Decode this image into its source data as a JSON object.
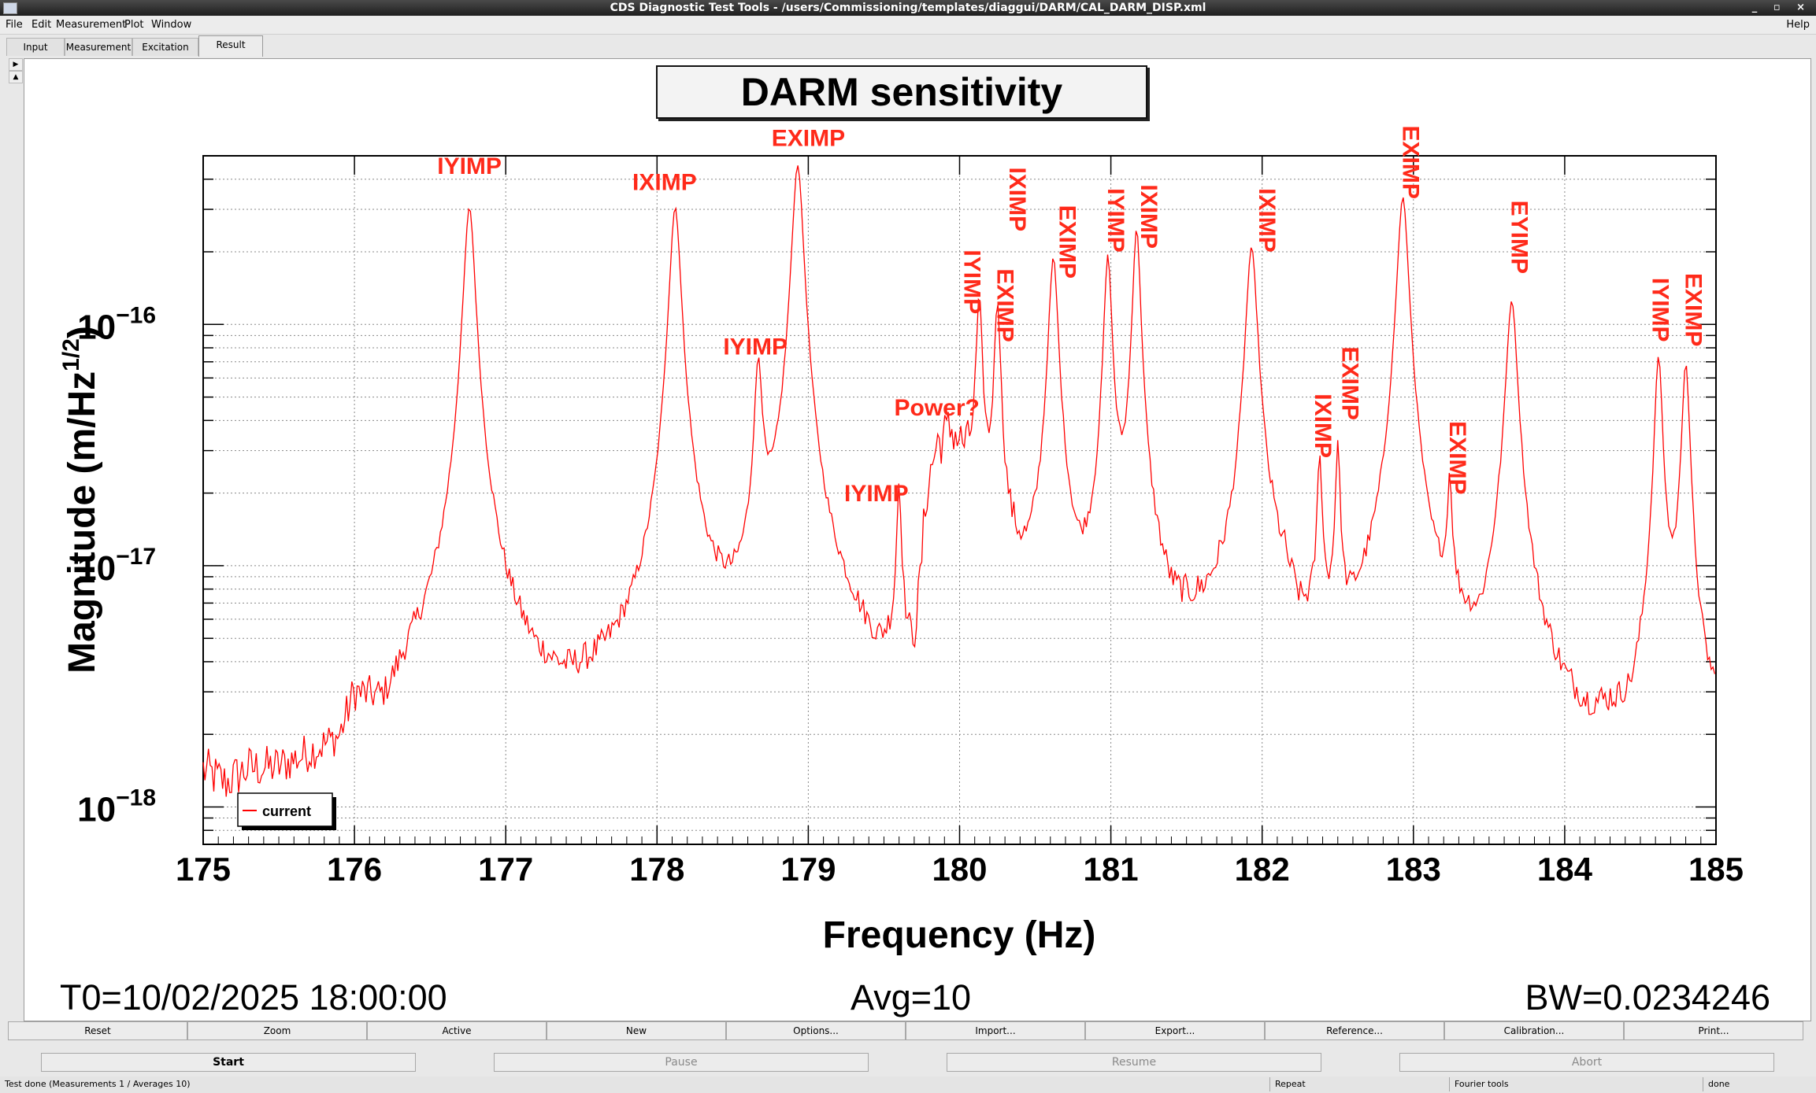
{
  "window": {
    "title": "CDS Diagnostic Test Tools - /users/Commissioning/templates/diaggui/DARM/CAL_DARM_DISP.xml",
    "controls": "_ ▫ ×"
  },
  "menu": {
    "items": [
      "File",
      "Edit",
      "Measurement",
      "Plot",
      "Window"
    ],
    "help": "Help"
  },
  "tabs": [
    "Input",
    "Measurement",
    "Excitation",
    "Result"
  ],
  "active_tab": "Result",
  "chart_data": {
    "type": "line",
    "title": "DARM sensitivity",
    "xlabel": "Frequency (Hz)",
    "ylabel_main": "Magnitude (m/Hz",
    "ylabel_sup": "1/2",
    "ylabel_close": ")",
    "xlim": [
      175,
      185
    ],
    "ylim": [
      7e-19,
      5e-16
    ],
    "yscale": "log",
    "grid": true,
    "x_ticks": [
      "175",
      "176",
      "177",
      "178",
      "179",
      "180",
      "181",
      "182",
      "183",
      "184",
      "185"
    ],
    "y_ticks": [
      {
        "value": 1e-18,
        "base": "10",
        "exp": "−18"
      },
      {
        "value": 1e-17,
        "base": "10",
        "exp": "−17"
      },
      {
        "value": 1e-16,
        "base": "10",
        "exp": "−16"
      }
    ],
    "series": [
      {
        "name": "current",
        "color": "#ff0000"
      }
    ],
    "baseline_points": [
      [
        175.0,
        1.2e-18
      ],
      [
        175.15,
        1e-18
      ],
      [
        175.3,
        1.15e-18
      ],
      [
        175.5,
        1.1e-18
      ],
      [
        175.7,
        1.2e-18
      ],
      [
        175.9,
        1.3e-18
      ],
      [
        176.0,
        2.2e-18
      ],
      [
        176.2,
        1.6e-18
      ],
      [
        176.35,
        2.5e-18
      ],
      [
        176.5,
        3.2e-18
      ],
      [
        176.6,
        4e-18
      ],
      [
        176.75,
        5.2e-18
      ],
      [
        176.9,
        5e-18
      ],
      [
        177.0,
        3.4e-18
      ],
      [
        177.2,
        2.3e-18
      ],
      [
        177.4,
        2e-18
      ],
      [
        177.6,
        2.2e-18
      ],
      [
        177.8,
        2.6e-18
      ],
      [
        178.0,
        3.4e-18
      ],
      [
        178.2,
        5.8e-18
      ],
      [
        178.35,
        3.9e-18
      ],
      [
        178.5,
        3.4e-18
      ],
      [
        178.7,
        5.2e-18
      ],
      [
        178.9,
        6.5e-18
      ],
      [
        179.1,
        4.2e-18
      ],
      [
        179.3,
        3.2e-18
      ],
      [
        179.45,
        2.3e-18
      ],
      [
        179.6,
        3.2e-18
      ],
      [
        179.7,
        2.7e-18
      ],
      [
        179.78,
        1.8e-17
      ],
      [
        179.85,
        3e-17
      ],
      [
        179.95,
        3.4e-17
      ],
      [
        180.05,
        2.4e-17
      ],
      [
        180.15,
        1.4e-17
      ],
      [
        180.3,
        1e-17
      ],
      [
        180.45,
        6e-18
      ],
      [
        180.55,
        7e-18
      ],
      [
        180.7,
        6.5e-18
      ],
      [
        180.8,
        4.2e-18
      ],
      [
        180.9,
        5.5e-18
      ],
      [
        181.0,
        8e-18
      ],
      [
        181.1,
        6.5e-18
      ],
      [
        181.25,
        6.5e-18
      ],
      [
        181.4,
        4e-18
      ],
      [
        181.6,
        4.3e-18
      ],
      [
        181.8,
        5.3e-18
      ],
      [
        182.0,
        8e-18
      ],
      [
        182.15,
        6e-18
      ],
      [
        182.25,
        3.5e-18
      ],
      [
        182.4,
        3.8e-18
      ],
      [
        182.55,
        3.2e-18
      ],
      [
        182.7,
        4e-18
      ],
      [
        182.85,
        5.5e-18
      ],
      [
        183.0,
        6e-18
      ],
      [
        183.1,
        3.6e-18
      ],
      [
        183.3,
        3.3e-18
      ],
      [
        183.45,
        2.2e-18
      ],
      [
        183.55,
        4e-18
      ],
      [
        183.7,
        5e-18
      ],
      [
        183.85,
        2.6e-18
      ],
      [
        184.0,
        1.8e-18
      ],
      [
        184.15,
        1.5e-18
      ],
      [
        184.3,
        1.6e-18
      ],
      [
        184.45,
        1.3e-18
      ],
      [
        184.55,
        2.4e-18
      ],
      [
        184.7,
        3.3e-18
      ],
      [
        184.8,
        3e-18
      ],
      [
        184.9,
        1.8e-18
      ],
      [
        185.0,
        1.7e-18
      ]
    ],
    "peaks": [
      {
        "f": 176.76,
        "amp": 3e-16,
        "w": 0.035
      },
      {
        "f": 178.12,
        "amp": 3e-16,
        "w": 0.035
      },
      {
        "f": 178.67,
        "amp": 6e-17,
        "w": 0.025
      },
      {
        "f": 178.93,
        "amp": 4.5e-16,
        "w": 0.035
      },
      {
        "f": 179.6,
        "amp": 1.7e-17,
        "w": 0.015
      },
      {
        "f": 180.13,
        "amp": 1.1e-16,
        "w": 0.02
      },
      {
        "f": 180.25,
        "amp": 1.1e-16,
        "w": 0.02
      },
      {
        "f": 180.62,
        "amp": 1.8e-16,
        "w": 0.03
      },
      {
        "f": 180.98,
        "amp": 1.8e-16,
        "w": 0.025
      },
      {
        "f": 181.17,
        "amp": 2.4e-16,
        "w": 0.025
      },
      {
        "f": 181.93,
        "amp": 2e-16,
        "w": 0.035
      },
      {
        "f": 182.38,
        "amp": 2.3e-17,
        "w": 0.015
      },
      {
        "f": 182.5,
        "amp": 2.6e-17,
        "w": 0.015
      },
      {
        "f": 182.93,
        "amp": 3.3e-16,
        "w": 0.035
      },
      {
        "f": 183.24,
        "amp": 1.6e-17,
        "w": 0.015
      },
      {
        "f": 183.65,
        "amp": 1.2e-16,
        "w": 0.035
      },
      {
        "f": 184.62,
        "amp": 7e-17,
        "w": 0.025
      },
      {
        "f": 184.8,
        "amp": 6.5e-17,
        "w": 0.025
      }
    ],
    "annotations": [
      {
        "text": "IYIMP",
        "x": 176.76,
        "y": 4.2e-16,
        "rotate": false
      },
      {
        "text": "IXIMP",
        "x": 178.05,
        "y": 3.6e-16,
        "rotate": false
      },
      {
        "text": "EXIMP",
        "x": 179.0,
        "y": 5.5e-16,
        "rotate": false
      },
      {
        "text": "IYIMP",
        "x": 178.65,
        "y": 7.5e-17,
        "rotate": false
      },
      {
        "text": "IYIMP",
        "x": 179.45,
        "y": 1.85e-17,
        "rotate": false
      },
      {
        "text": "Power?",
        "x": 179.85,
        "y": 4.2e-17,
        "rotate": false
      },
      {
        "text": "IYIMP",
        "x": 180.03,
        "y": 1.5e-16,
        "rotate": true
      },
      {
        "text": "EXIMP",
        "x": 180.25,
        "y": 1.2e-16,
        "rotate": true
      },
      {
        "text": "IXIMP",
        "x": 180.33,
        "y": 3.3e-16,
        "rotate": true
      },
      {
        "text": "EXIMP",
        "x": 180.66,
        "y": 2.2e-16,
        "rotate": true
      },
      {
        "text": "IYIMP",
        "x": 180.98,
        "y": 2.7e-16,
        "rotate": true
      },
      {
        "text": "IXIMP",
        "x": 181.2,
        "y": 2.8e-16,
        "rotate": true
      },
      {
        "text": "IXIMP",
        "x": 181.98,
        "y": 2.7e-16,
        "rotate": true
      },
      {
        "text": "IXIMP",
        "x": 182.35,
        "y": 3.8e-17,
        "rotate": true
      },
      {
        "text": "EXIMP",
        "x": 182.53,
        "y": 5.7e-17,
        "rotate": true
      },
      {
        "text": "EXIMP",
        "x": 182.93,
        "y": 4.7e-16,
        "rotate": true
      },
      {
        "text": "EXIMP",
        "x": 183.24,
        "y": 2.8e-17,
        "rotate": true
      },
      {
        "text": "EYIMP",
        "x": 183.65,
        "y": 2.3e-16,
        "rotate": true
      },
      {
        "text": "IYIMP",
        "x": 184.58,
        "y": 1.15e-16,
        "rotate": true
      },
      {
        "text": "EXIMP",
        "x": 184.8,
        "y": 1.15e-16,
        "rotate": true
      }
    ],
    "legend": {
      "label": "current",
      "position": "bottom-left"
    }
  },
  "stats": {
    "t0": "T0=10/02/2025 18:00:00",
    "avg": "Avg=10",
    "bw": "BW=0.0234246"
  },
  "toolbar": [
    "Reset",
    "Zoom",
    "Active",
    "New",
    "Options...",
    "Import...",
    "Export...",
    "Reference...",
    "Calibration...",
    "Print..."
  ],
  "controls": [
    {
      "label": "Start",
      "enabled": true
    },
    {
      "label": "Pause",
      "enabled": false
    },
    {
      "label": "Resume",
      "enabled": false
    },
    {
      "label": "Abort",
      "enabled": false
    }
  ],
  "status": {
    "message": "Test done (Measurements 1 / Averages 10)",
    "repeat": "Repeat",
    "mode": "Fourier tools",
    "state": "done"
  }
}
